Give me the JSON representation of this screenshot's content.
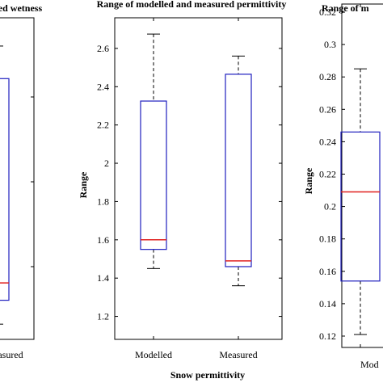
{
  "chart_data": [
    {
      "type": "box",
      "title": "ured wetness",
      "xlabel": "",
      "ylabel": "",
      "categories": [
        "Measured"
      ],
      "category_labels": [
        "easured"
      ],
      "ylim": [
        0.012,
        0.086
      ],
      "yticks": [],
      "boxes": [
        {
          "name": "Measured",
          "whisker_low": 0.0155,
          "q1": 0.021,
          "median": 0.025,
          "q3": 0.072,
          "whisker_high": 0.0795
        }
      ],
      "colors": {
        "box": "#1f1fbf",
        "median": "#e0201f",
        "whisker": "#000000"
      }
    },
    {
      "type": "box",
      "title": "Range of modelled and measured permittivity",
      "xlabel": "Snow permittivity",
      "ylabel": "Range",
      "categories": [
        "Modelled",
        "Measured"
      ],
      "category_labels": [
        "Modelled",
        "Measured"
      ],
      "ylim": [
        1.08,
        2.76
      ],
      "yticks": [
        "1.2",
        "1.4",
        "1.6",
        "1.8",
        "2",
        "2.2",
        "2.4",
        "2.6"
      ],
      "boxes": [
        {
          "name": "Modelled",
          "whisker_low": 1.45,
          "q1": 1.55,
          "median": 1.6,
          "q3": 2.325,
          "whisker_high": 2.675
        },
        {
          "name": "Measured",
          "whisker_low": 1.36,
          "q1": 1.46,
          "median": 1.49,
          "q3": 2.465,
          "whisker_high": 2.56
        }
      ],
      "colors": {
        "box": "#1f1fbf",
        "median": "#e0201f",
        "whisker": "#000000"
      }
    },
    {
      "type": "box",
      "title": "Range of m",
      "xlabel": "",
      "ylabel": "Range",
      "categories": [
        "Modelled"
      ],
      "category_labels": [
        "Mod"
      ],
      "ylim": [
        0.113,
        0.325
      ],
      "yticks": [
        "0.12",
        "0.14",
        "0.16",
        "0.18",
        "0.2",
        "0.22",
        "0.24",
        "0.26",
        "0.28",
        "0.3",
        "0.32"
      ],
      "boxes": [
        {
          "name": "Modelled",
          "whisker_low": 0.121,
          "q1": 0.154,
          "median": 0.209,
          "q3": 0.246,
          "whisker_high": 0.285
        }
      ],
      "colors": {
        "box": "#1f1fbf",
        "median": "#e0201f",
        "whisker": "#000000"
      }
    }
  ]
}
